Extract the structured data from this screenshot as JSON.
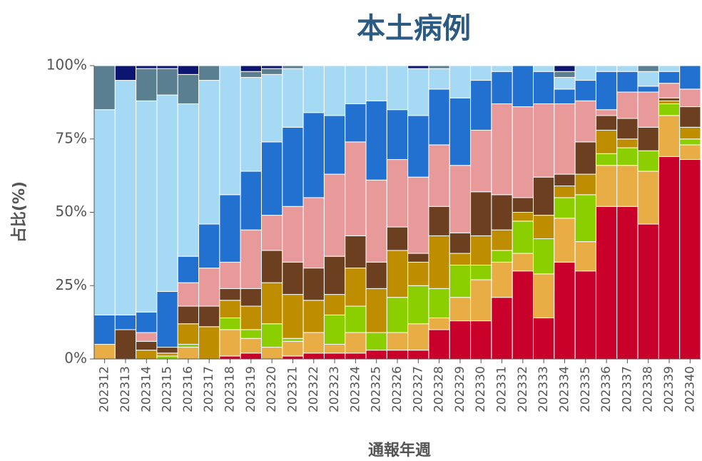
{
  "chart_data": {
    "type": "stacked_bar",
    "title": "本土病例",
    "x_label": "通報年週",
    "y_label": "占比(%)",
    "categories": [
      "202312",
      "202313",
      "202314",
      "202315",
      "202316",
      "202317",
      "202318",
      "202319",
      "202320",
      "202321",
      "202322",
      "202323",
      "202324",
      "202325",
      "202326",
      "202327",
      "202328",
      "202329",
      "202330",
      "202331",
      "202332",
      "202333",
      "202334",
      "202335",
      "202336",
      "202337",
      "202338",
      "202339",
      "202340"
    ],
    "ylim": [
      0,
      100
    ],
    "yticks": [
      {
        "value": 0,
        "label": "0%"
      },
      {
        "value": 25,
        "label": "25%"
      },
      {
        "value": 50,
        "label": "50%"
      },
      {
        "value": 75,
        "label": "75%"
      },
      {
        "value": 100,
        "label": "100%"
      }
    ],
    "series": [
      {
        "color": "#c8002a",
        "values": [
          0,
          0,
          0,
          0,
          0,
          0,
          1,
          2,
          0,
          1,
          2,
          2,
          2,
          3,
          3,
          3,
          10,
          13,
          13,
          21,
          30,
          14,
          33,
          30,
          52,
          52,
          46,
          69,
          68
        ]
      },
      {
        "color": "#e8ae45",
        "values": [
          5,
          0,
          0,
          0,
          4,
          0,
          9,
          5,
          4,
          5,
          7,
          3,
          7,
          0,
          6,
          9,
          4,
          8,
          14,
          12,
          6,
          15,
          15,
          10,
          14,
          14,
          18,
          14,
          5
        ]
      },
      {
        "color": "#8ccf00",
        "values": [
          0,
          0,
          0,
          1,
          1,
          0,
          4,
          3,
          8,
          1,
          0,
          10,
          9,
          6,
          12,
          13,
          10,
          11,
          5,
          4,
          11,
          12,
          7,
          16,
          4,
          6,
          7,
          4,
          2
        ]
      },
      {
        "color": "#bf8e00",
        "values": [
          0,
          0,
          3,
          1,
          7,
          11,
          6,
          8,
          14,
          15,
          11,
          7,
          13,
          15,
          16,
          8,
          18,
          4,
          10,
          7,
          3,
          8,
          4,
          7,
          8,
          3,
          0,
          1,
          4
        ]
      },
      {
        "color": "#6b3f1f",
        "values": [
          0,
          10,
          3,
          2,
          6,
          7,
          4,
          6,
          11,
          11,
          11,
          13,
          11,
          9,
          8,
          3,
          10,
          7,
          15,
          12,
          5,
          13,
          4,
          11,
          5,
          7,
          8,
          1,
          7
        ]
      },
      {
        "color": "#e89a9a",
        "values": [
          0,
          0,
          3,
          0,
          8,
          13,
          9,
          20,
          12,
          19,
          24,
          28,
          32,
          28,
          23,
          26,
          21,
          23,
          21,
          31,
          31,
          25,
          24,
          14,
          2,
          9,
          12,
          5,
          6
        ]
      },
      {
        "color": "#2270cf",
        "values": [
          10,
          5,
          7,
          19,
          9,
          15,
          23,
          20,
          25,
          27,
          29,
          20,
          13,
          27,
          17,
          21,
          19,
          23,
          17,
          11,
          14,
          11,
          5,
          7,
          13,
          7,
          2,
          4,
          8
        ]
      },
      {
        "color": "#a6d9f3",
        "values": [
          70,
          80,
          72,
          67,
          52,
          49,
          44,
          32,
          23,
          20,
          16,
          17,
          13,
          12,
          15,
          16,
          7,
          11,
          5,
          2,
          0,
          2,
          4,
          5,
          2,
          2,
          5,
          2,
          0
        ]
      },
      {
        "color": "#5a7f90",
        "values": [
          15,
          0,
          11,
          9,
          10,
          5,
          0,
          2,
          2,
          1,
          0,
          0,
          0,
          0,
          0,
          0,
          1,
          0,
          0,
          0,
          0,
          0,
          2,
          0,
          0,
          0,
          2,
          0,
          0
        ]
      },
      {
        "color": "#0c1670",
        "values": [
          0,
          5,
          1,
          1,
          3,
          0,
          0,
          2,
          1,
          0,
          0,
          0,
          0,
          0,
          0,
          1,
          0,
          0,
          0,
          0,
          0,
          0,
          2,
          0,
          0,
          0,
          0,
          0,
          0
        ]
      }
    ]
  }
}
